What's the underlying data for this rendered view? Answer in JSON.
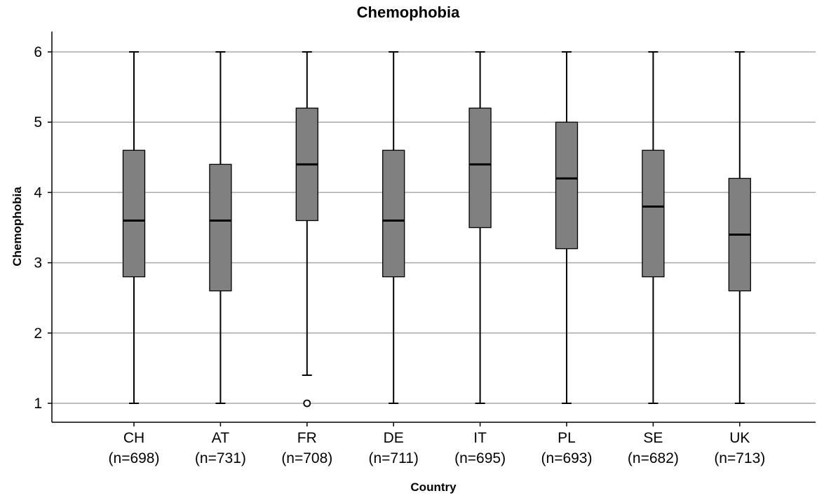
{
  "chart_data": {
    "type": "boxplot",
    "title": "Chemophobia",
    "xlabel": "Country",
    "ylabel": "Chemophobia",
    "ylim": [
      0.7,
      6.3
    ],
    "yticks": [
      1,
      2,
      3,
      4,
      5,
      6
    ],
    "grid": true,
    "categories": [
      {
        "name": "CH",
        "n_label": "(n=698)",
        "whisker_low": 1,
        "q1": 2.8,
        "median": 3.6,
        "q3": 4.6,
        "whisker_high": 6,
        "outliers": []
      },
      {
        "name": "AT",
        "n_label": "(n=731)",
        "whisker_low": 1,
        "q1": 2.6,
        "median": 3.6,
        "q3": 4.4,
        "whisker_high": 6,
        "outliers": []
      },
      {
        "name": "FR",
        "n_label": "(n=708)",
        "whisker_low": 1.4,
        "q1": 3.6,
        "median": 4.4,
        "q3": 5.2,
        "whisker_high": 6,
        "outliers": [
          1
        ]
      },
      {
        "name": "DE",
        "n_label": "(n=711)",
        "whisker_low": 1,
        "q1": 2.8,
        "median": 3.6,
        "q3": 4.6,
        "whisker_high": 6,
        "outliers": []
      },
      {
        "name": "IT",
        "n_label": "(n=695)",
        "whisker_low": 1,
        "q1": 3.5,
        "median": 4.4,
        "q3": 5.2,
        "whisker_high": 6,
        "outliers": []
      },
      {
        "name": "PL",
        "n_label": "(n=693)",
        "whisker_low": 1,
        "q1": 3.2,
        "median": 4.2,
        "q3": 5.0,
        "whisker_high": 6,
        "outliers": []
      },
      {
        "name": "SE",
        "n_label": "(n=682)",
        "whisker_low": 1,
        "q1": 2.8,
        "median": 3.8,
        "q3": 4.6,
        "whisker_high": 6,
        "outliers": []
      },
      {
        "name": "UK",
        "n_label": "(n=713)",
        "whisker_low": 1,
        "q1": 2.6,
        "median": 3.4,
        "q3": 4.2,
        "whisker_high": 6,
        "outliers": []
      }
    ],
    "colors": {
      "box_fill": "#808080",
      "box_stroke": "#000000",
      "median": "#000000",
      "grid": "#a8a8a8",
      "axis": "#000000"
    }
  }
}
